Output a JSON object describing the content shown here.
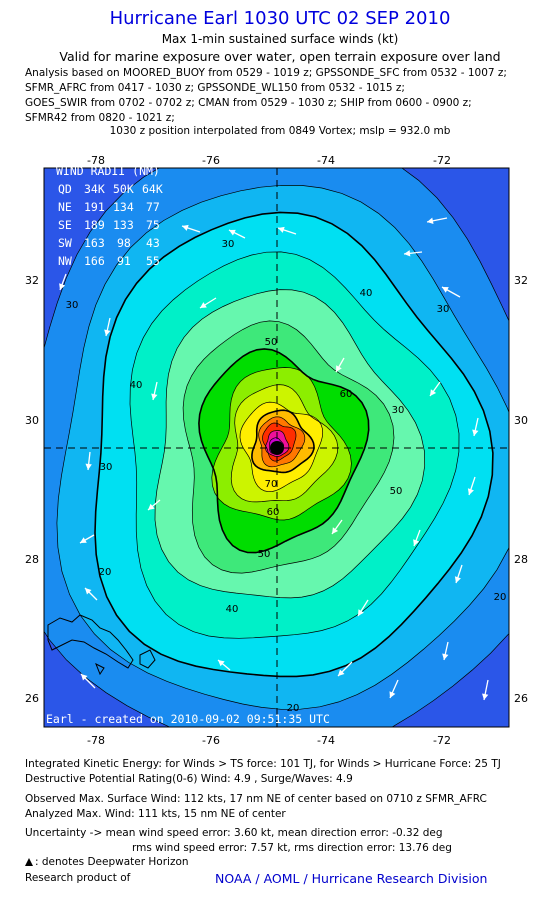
{
  "header": {
    "title": "Hurricane Earl 1030 UTC 02 SEP 2010",
    "subtitle": "Max 1-min sustained surface winds (kt)",
    "valid": "Valid for marine exposure over water, open terrain exposure over land",
    "analysis_lines": [
      "Analysis based on MOORED_BUOY from 0529 - 1019 z; GPSSONDE_SFC from 0532 - 1007 z;",
      "SFMR_AFRC from 0417 - 1030 z; GPSSONDE_WL150 from 0532 - 1015 z;",
      "GOES_SWIR from 0702 - 0702 z; CMAN from 0529 - 1030 z; SHIP from 0600 - 0900 z;",
      "SFMR42 from 0820 - 1021 z;"
    ],
    "position_line": "1030 z position interpolated from 0849 Vortex; mslp = 932.0 mb"
  },
  "map": {
    "lon_ticks": [
      "-78",
      "-76",
      "-74",
      "-72"
    ],
    "lat_ticks": [
      "32",
      "30",
      "28",
      "26"
    ],
    "center": {
      "lon": -74.85,
      "lat": 29.55
    },
    "contour_labels": [
      "30",
      "30",
      "30",
      "30",
      "30",
      "40",
      "40",
      "40",
      "50",
      "50",
      "50",
      "60",
      "60",
      "70",
      "20",
      "20",
      "20"
    ],
    "created": "Earl - created on 2010-09-02 09:51:35 UTC",
    "wind_radii": {
      "title": "WIND RADII (NM)",
      "header": [
        "QD",
        "34K",
        "50K",
        "64K"
      ],
      "rows": [
        [
          "NE",
          "191",
          "134",
          "77"
        ],
        [
          "SE",
          "189",
          "133",
          "75"
        ],
        [
          "SW",
          "163",
          "98",
          "43"
        ],
        [
          "NW",
          "166",
          "91",
          "55"
        ]
      ]
    },
    "colors": {
      "c15": "#2b56e8",
      "c20": "#1a8cf0",
      "c25": "#10b6f2",
      "c30": "#00e0f2",
      "c35": "#00f0c8",
      "c40": "#66f7ae",
      "c45": "#3ee87a",
      "c50": "#00dd00",
      "c55": "#8cee00",
      "c60": "#ccf400",
      "c65": "#ffee00",
      "c70": "#ffbb00",
      "c80": "#ff7700",
      "c90": "#ff2d00",
      "c100": "#ee1199",
      "c110": "#cc00cc"
    }
  },
  "footer": {
    "ike": "Integrated Kinetic Energy: for Winds > TS force: 101 TJ,  for Winds > Hurricane Force: 25 TJ",
    "dpr": "Destructive Potential Rating(0-6)   Wind: 4.9 , Surge/Waves: 4.9",
    "observed": "Observed Max. Surface Wind: 112 kts, 17 nm NE of center based on 0710 z SFMR_AFRC",
    "analyzed": "Analyzed Max. Wind: 111 kts, 15 nm NE of center",
    "uncertainty1": "Uncertainty -> mean wind speed error: 3.60 kt,   mean direction error:  -0.32 deg",
    "uncertainty2": "rms wind speed error: 7.57 kt,   rms direction error: 13.76 deg",
    "deepwater": ": denotes Deepwater Horizon",
    "research": "Research product of",
    "noaa": "NOAA / AOML / Hurricane Research Division"
  }
}
